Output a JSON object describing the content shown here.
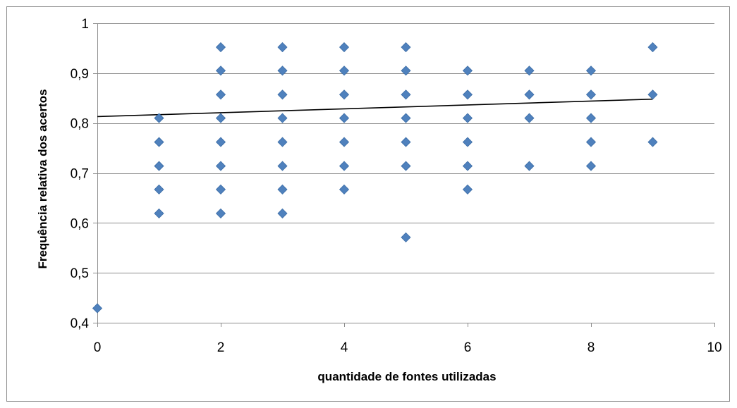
{
  "chart_data": {
    "type": "scatter",
    "xlabel": "quantidade de fontes utilizadas",
    "ylabel": "Frequência relativa dos acertos",
    "xlim": [
      0,
      10
    ],
    "ylim": [
      0.4,
      1
    ],
    "x_ticks": [
      0,
      2,
      4,
      6,
      8,
      10
    ],
    "y_ticks": [
      0.4,
      0.5,
      0.6,
      0.7,
      0.8,
      0.9,
      1
    ],
    "x_tick_labels": [
      "0",
      "2",
      "4",
      "6",
      "8",
      "10"
    ],
    "y_tick_labels": [
      "0,4",
      "0,5",
      "0,6",
      "0,7",
      "0,8",
      "0,9",
      "1"
    ],
    "grid": "horizontal",
    "marker": "diamond",
    "colors": {
      "points": "#4f81bd",
      "points_edge": "#3c6da6",
      "trendline": "#000000",
      "grid": "#8c8c8c"
    },
    "series": [
      {
        "points": [
          [
            0,
            0.429
          ],
          [
            1,
            0.619
          ],
          [
            1,
            0.667
          ],
          [
            1,
            0.714
          ],
          [
            1,
            0.762
          ],
          [
            1,
            0.81
          ],
          [
            2,
            0.619
          ],
          [
            2,
            0.667
          ],
          [
            2,
            0.714
          ],
          [
            2,
            0.762
          ],
          [
            2,
            0.81
          ],
          [
            2,
            0.857
          ],
          [
            2,
            0.905
          ],
          [
            2,
            0.952
          ],
          [
            3,
            0.619
          ],
          [
            3,
            0.667
          ],
          [
            3,
            0.714
          ],
          [
            3,
            0.762
          ],
          [
            3,
            0.81
          ],
          [
            3,
            0.857
          ],
          [
            3,
            0.905
          ],
          [
            3,
            0.952
          ],
          [
            4,
            0.667
          ],
          [
            4,
            0.714
          ],
          [
            4,
            0.762
          ],
          [
            4,
            0.81
          ],
          [
            4,
            0.857
          ],
          [
            4,
            0.905
          ],
          [
            4,
            0.952
          ],
          [
            5,
            0.571
          ],
          [
            5,
            0.714
          ],
          [
            5,
            0.762
          ],
          [
            5,
            0.81
          ],
          [
            5,
            0.857
          ],
          [
            5,
            0.905
          ],
          [
            5,
            0.952
          ],
          [
            6,
            0.667
          ],
          [
            6,
            0.714
          ],
          [
            6,
            0.762
          ],
          [
            6,
            0.81
          ],
          [
            6,
            0.857
          ],
          [
            6,
            0.905
          ],
          [
            7,
            0.714
          ],
          [
            7,
            0.81
          ],
          [
            7,
            0.857
          ],
          [
            7,
            0.905
          ],
          [
            8,
            0.714
          ],
          [
            8,
            0.762
          ],
          [
            8,
            0.81
          ],
          [
            8,
            0.857
          ],
          [
            8,
            0.905
          ],
          [
            9,
            0.762
          ],
          [
            9,
            0.857
          ],
          [
            9,
            0.952
          ]
        ]
      }
    ],
    "trendline": {
      "x": [
        0,
        9
      ],
      "y": [
        0.813,
        0.848
      ]
    }
  }
}
